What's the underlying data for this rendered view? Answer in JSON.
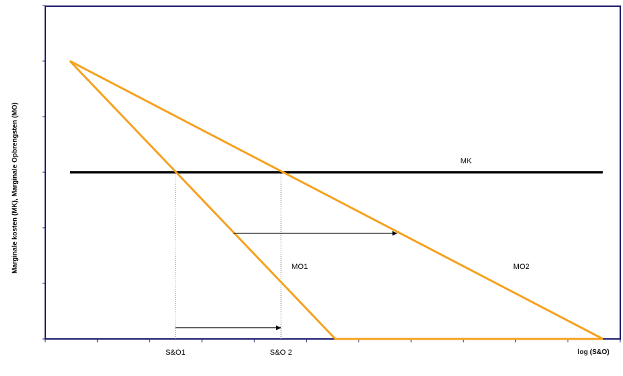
{
  "chart_data": {
    "type": "line",
    "title": "",
    "xlabel": "log (S&O)",
    "ylabel": "Marginale kosten (MK), Marginale Opbrengsten (MO)",
    "xlim": [
      0,
      10
    ],
    "ylim": [
      0,
      6
    ],
    "grid": false,
    "legend": "none",
    "series": [
      {
        "name": "MK",
        "x": [
          0.5,
          10.6
        ],
        "y": [
          3,
          3
        ]
      },
      {
        "name": "MO1",
        "x": [
          0.5,
          5.53,
          10.6
        ],
        "y": [
          5,
          0,
          0
        ]
      },
      {
        "name": "MO2",
        "x": [
          0.5,
          10.6
        ],
        "y": [
          5,
          0
        ]
      }
    ],
    "x_tick_labels": [
      {
        "label": "S&O1",
        "x": 2.5
      },
      {
        "label": "S&O 2",
        "x": 4.5
      }
    ],
    "annotations": [
      {
        "text": "MK",
        "x": 7.9,
        "y": 3.2
      },
      {
        "text": "MO1",
        "x": 4.7,
        "y": 1.3
      },
      {
        "text": "MO2",
        "x": 8.9,
        "y": 1.3
      }
    ],
    "arrows": [
      {
        "from": [
          3.6,
          1.9
        ],
        "to": [
          6.7,
          1.9
        ]
      },
      {
        "from": [
          2.5,
          0.2
        ],
        "to": [
          4.5,
          0.2
        ]
      }
    ],
    "guides": [
      {
        "x": 2.5,
        "y_from": 0,
        "y_to": 3
      },
      {
        "x": 4.5,
        "y_from": 0,
        "y_to": 3
      }
    ],
    "colors": {
      "mo": "#f5a11e",
      "mk": "#000000",
      "axes": "#1c1c6e",
      "guides": "#7f7f7f"
    }
  }
}
